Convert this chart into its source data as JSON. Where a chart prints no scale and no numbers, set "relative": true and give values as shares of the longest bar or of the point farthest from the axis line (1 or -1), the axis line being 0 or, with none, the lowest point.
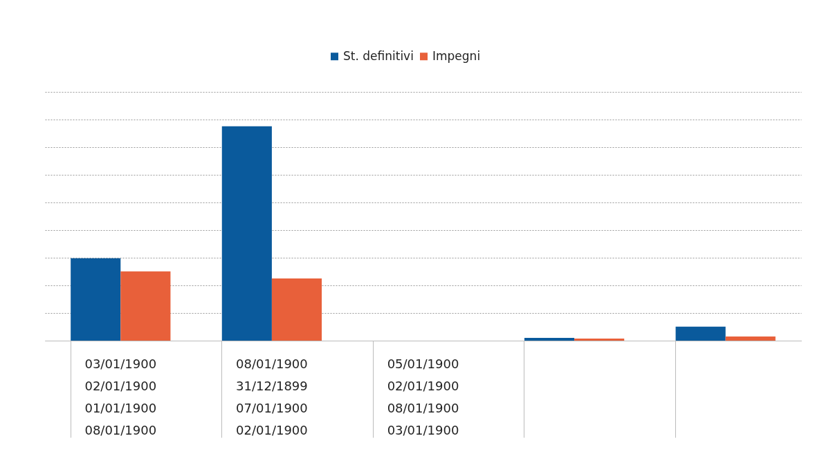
{
  "chart_data": {
    "type": "bar",
    "relative": true,
    "grid": "y",
    "legend": "top",
    "categories": [
      "03/01/1900\n02/01/1900\n01/01/1900\n08/01/1900",
      "08/01/1900\n31/12/1899\n07/01/1900\n02/01/1900",
      "05/01/1900\n02/01/1900\n08/01/1900\n03/01/1900",
      null,
      null
    ],
    "series": [
      {
        "name": "St. definitivi",
        "color": "#0a5a9c",
        "values": [
          0.384,
          1,
          0,
          0.013,
          0.065
        ]
      },
      {
        "name": "Impegni",
        "color": "#e8603a",
        "values": [
          0.323,
          0.29,
          0,
          0.01,
          0.019
        ]
      }
    ]
  }
}
